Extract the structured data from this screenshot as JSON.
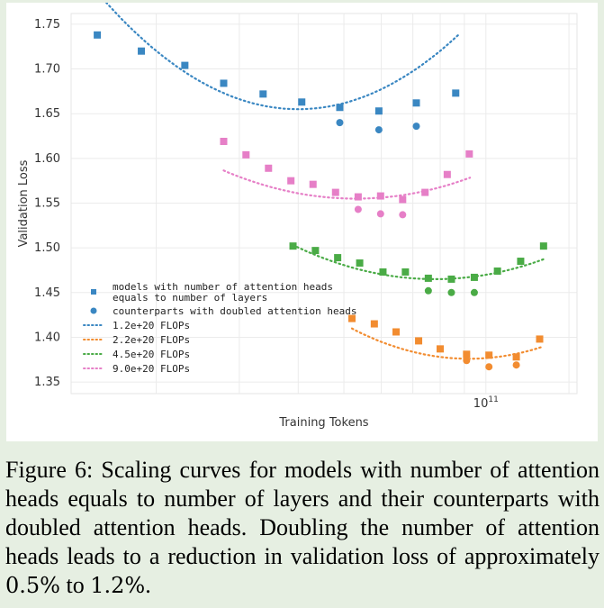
{
  "chart_data": {
    "type": "scatter",
    "xscale": "log",
    "xlabel": "Training Tokens",
    "ylabel": "Validation Loss",
    "ylim": [
      1.35,
      1.75
    ],
    "yticks": [
      "1.35",
      "1.40",
      "1.45",
      "1.50",
      "1.55",
      "1.60",
      "1.65",
      "1.70",
      "1.75"
    ],
    "xtick_label": "10^11",
    "xtick_base": "10",
    "xtick_exp": "11",
    "grid": true,
    "legend_position": "lower-left",
    "legend": {
      "marker_square": "models with number of attention heads equals to number of layers",
      "marker_square_line1": "models with number of attention heads",
      "marker_square_line2": "equals to number of layers",
      "marker_circle": "counterparts with doubled attention heads"
    },
    "series": [
      {
        "name": "1.2e+20 FLOPs",
        "color": "#3a87c2",
        "squares": [
          [
            15000000000.0,
            1.738
          ],
          [
            18600000000.0,
            1.72
          ],
          [
            23000000000.0,
            1.704
          ],
          [
            27800000000.0,
            1.684
          ],
          [
            33700000000.0,
            1.672
          ],
          [
            40700000000.0,
            1.663
          ],
          [
            49000000000.0,
            1.657
          ],
          [
            59300000000.0,
            1.653
          ],
          [
            71200000000.0,
            1.662
          ],
          [
            86300000000.0,
            1.673
          ]
        ],
        "circles": [
          [
            49000000000.0,
            1.64
          ],
          [
            59300000000.0,
            1.632
          ],
          [
            71200000000.0,
            1.636
          ]
        ],
        "curve_x": [
          15000000000.0,
          87500000000.0
        ],
        "curve_coef": [
          0.72,
          40000000000.0,
          1.655
        ]
      },
      {
        "name": "2.2e+20 FLOPs",
        "color": "#f28c30",
        "squares": [
          [
            52000000000.0,
            1.421
          ],
          [
            58000000000.0,
            1.415
          ],
          [
            64500000000.0,
            1.406
          ],
          [
            72000000000.0,
            1.396
          ],
          [
            80000000000.0,
            1.387
          ],
          [
            91000000000.0,
            1.381
          ],
          [
            101500000000.0,
            1.38
          ],
          [
            116000000000.0,
            1.378
          ],
          [
            130000000000.0,
            1.398
          ]
        ],
        "circles": [
          [
            91000000000.0,
            1.374
          ],
          [
            101500000000.0,
            1.367
          ],
          [
            116000000000.0,
            1.369
          ]
        ],
        "curve_x": [
          52000000000.0,
          131000000000.0
        ],
        "curve_coef": [
          0.55,
          92000000000.0,
          1.376
        ]
      },
      {
        "name": "4.5e+20 FLOPs",
        "color": "#4aab46",
        "squares": [
          [
            39000000000.0,
            1.502
          ],
          [
            43500000000.0,
            1.497
          ],
          [
            48500000000.0,
            1.489
          ],
          [
            54000000000.0,
            1.483
          ],
          [
            60500000000.0,
            1.473
          ],
          [
            67500000000.0,
            1.473
          ],
          [
            75500000000.0,
            1.466
          ],
          [
            84500000000.0,
            1.465
          ],
          [
            94500000000.0,
            1.467
          ],
          [
            105800000000.0,
            1.474
          ],
          [
            118500000000.0,
            1.485
          ],
          [
            132500000000.0,
            1.502
          ]
        ],
        "circles": [
          [
            75500000000.0,
            1.452
          ],
          [
            84500000000.0,
            1.45
          ],
          [
            94500000000.0,
            1.45
          ]
        ],
        "curve_x": [
          39000000000.0,
          133000000000.0
        ],
        "curve_coef": [
          0.42,
          78000000000.0,
          1.465
        ]
      },
      {
        "name": "9.0e+20 FLOPs",
        "color": "#e67fc7",
        "squares": [
          [
            27800000000.0,
            1.619
          ],
          [
            31000000000.0,
            1.604
          ],
          [
            34600000000.0,
            1.589
          ],
          [
            38600000000.0,
            1.575
          ],
          [
            43000000000.0,
            1.571
          ],
          [
            48000000000.0,
            1.562
          ],
          [
            53600000000.0,
            1.557
          ],
          [
            59800000000.0,
            1.558
          ],
          [
            66600000000.0,
            1.554
          ],
          [
            74300000000.0,
            1.562
          ],
          [
            82800000000.0,
            1.582
          ],
          [
            92200000000.0,
            1.605
          ]
        ],
        "circles": [
          [
            53600000000.0,
            1.543
          ],
          [
            59800000000.0,
            1.538
          ],
          [
            66600000000.0,
            1.537
          ]
        ],
        "curve_x": [
          27800000000.0,
          92500000000.0
        ],
        "curve_coef": [
          0.4,
          53000000000.0,
          1.555
        ]
      }
    ]
  },
  "caption": {
    "label": "Figure 6:",
    "text_before": "Scaling curves for models with number of attention heads equals to number of layers and their counterparts with doubled attention heads. Doubling the number of attention heads leads to a reduction in validation loss of approximately",
    "value_low": "0.5%",
    "connector": "to",
    "value_high": "1.2%",
    "end": "."
  }
}
